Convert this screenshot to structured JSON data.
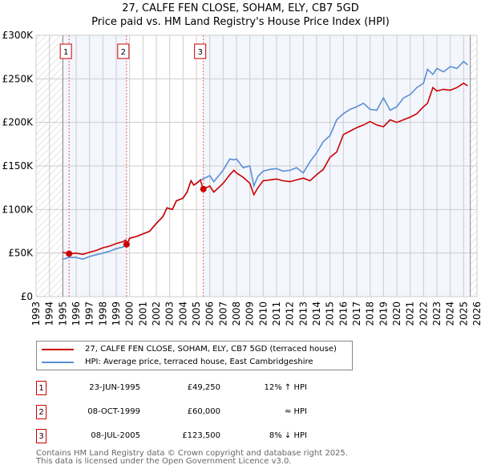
{
  "title_line1": "27, CALFE FEN CLOSE, SOHAM, ELY, CB7 5GD",
  "title_line2": "Price paid vs. HM Land Registry's House Price Index (HPI)",
  "chart_data": {
    "type": "line",
    "ylim": [
      0,
      300000
    ],
    "xlim": [
      1993,
      2026
    ],
    "yticks": [
      {
        "v": 0,
        "label": "£0"
      },
      {
        "v": 50000,
        "label": "£50K"
      },
      {
        "v": 100000,
        "label": "£100K"
      },
      {
        "v": 150000,
        "label": "£150K"
      },
      {
        "v": 200000,
        "label": "£200K"
      },
      {
        "v": 250000,
        "label": "£250K"
      },
      {
        "v": 300000,
        "label": "£300K"
      }
    ],
    "xticks": [
      "1993",
      "1994",
      "1995",
      "1996",
      "1997",
      "1998",
      "1999",
      "2000",
      "2001",
      "2002",
      "2003",
      "2004",
      "2005",
      "2006",
      "2007",
      "2008",
      "2009",
      "2010",
      "2011",
      "2012",
      "2013",
      "2014",
      "2015",
      "2016",
      "2017",
      "2018",
      "2019",
      "2020",
      "2021",
      "2022",
      "2023",
      "2024",
      "2025",
      "2026"
    ],
    "data_range": [
      1995,
      2025.5
    ],
    "series": [
      {
        "name": "27, CALFE FEN CLOSE, SOHAM, ELY, CB7 5GD (terraced house)",
        "color": "#cc0000",
        "x": [
          1995,
          1995.5,
          1996,
          1996.5,
          1997,
          1997.5,
          1998,
          1998.5,
          1999,
          1999.5,
          1999.7,
          1999.8,
          2000,
          2000.5,
          2001,
          2001.5,
          2002,
          2002.5,
          2002.8,
          2003.2,
          2003.5,
          2004,
          2004.3,
          2004.6,
          2004.8,
          2005,
          2005.3,
          2005.5,
          2006,
          2006.3,
          2007,
          2007.5,
          2007.8,
          2008,
          2008.5,
          2009,
          2009.3,
          2009.6,
          2010,
          2010.5,
          2011,
          2011.5,
          2012,
          2012.5,
          2013,
          2013.5,
          2014,
          2014.5,
          2015,
          2015.5,
          2016,
          2016.5,
          2017,
          2017.5,
          2018,
          2018.5,
          2019,
          2019.5,
          2020,
          2020.5,
          2021,
          2021.5,
          2022,
          2022.3,
          2022.7,
          2023,
          2023.5,
          2024,
          2024.5,
          2025,
          2025.3
        ],
        "values": [
          51000,
          49000,
          50000,
          48500,
          51000,
          53000,
          56000,
          58000,
          61000,
          63000,
          65000,
          60000,
          67000,
          69000,
          72000,
          75000,
          84000,
          92000,
          102000,
          100000,
          110000,
          113000,
          120000,
          133000,
          128000,
          130000,
          134000,
          123500,
          127000,
          120000,
          130000,
          140000,
          145000,
          142000,
          137000,
          130000,
          117000,
          125000,
          133000,
          134000,
          135000,
          133000,
          132000,
          134000,
          136000,
          133000,
          140000,
          146000,
          160000,
          166000,
          186000,
          190000,
          194000,
          197000,
          201000,
          197000,
          195000,
          203000,
          200000,
          203000,
          206000,
          210000,
          218000,
          222000,
          240000,
          236000,
          238000,
          237000,
          240000,
          245000,
          242000
        ]
      },
      {
        "name": "HPI: Average price, terraced house, East Cambridgeshire",
        "color": "#5b8fd4",
        "x": [
          1995,
          1995.5,
          1996,
          1996.5,
          1997,
          1997.5,
          1998,
          1998.5,
          1999,
          1999.5,
          1999.8,
          2000,
          2000.5,
          2001,
          2001.5,
          2002,
          2002.5,
          2002.8,
          2003.2,
          2003.5,
          2004,
          2004.3,
          2004.6,
          2004.8,
          2005,
          2005.3,
          2005.5,
          2006,
          2006.3,
          2007,
          2007.5,
          2007.8,
          2008,
          2008.5,
          2009,
          2009.3,
          2009.6,
          2010,
          2010.5,
          2011,
          2011.5,
          2012,
          2012.5,
          2013,
          2013.5,
          2014,
          2014.5,
          2015,
          2015.5,
          2016,
          2016.5,
          2017,
          2017.5,
          2018,
          2018.5,
          2019,
          2019.5,
          2020,
          2020.5,
          2021,
          2021.5,
          2022,
          2022.3,
          2022.7,
          2023,
          2023.5,
          2024,
          2024.5,
          2025,
          2025.3
        ],
        "values": [
          43000,
          45000,
          45000,
          43000,
          46000,
          48000,
          50000,
          52000,
          55000,
          57000,
          60000,
          67000,
          69000,
          72000,
          75000,
          84000,
          92000,
          102000,
          100000,
          110000,
          113000,
          120000,
          133000,
          128000,
          130000,
          134000,
          135000,
          139000,
          132000,
          145000,
          158000,
          157000,
          158000,
          148000,
          150000,
          127000,
          138000,
          144000,
          146000,
          147000,
          144000,
          145000,
          148000,
          142000,
          155000,
          165000,
          178000,
          185000,
          203000,
          210000,
          215000,
          218000,
          222000,
          215000,
          214000,
          228000,
          214000,
          218000,
          228000,
          232000,
          240000,
          245000,
          261000,
          255000,
          262000,
          258000,
          264000,
          262000,
          270000,
          266000
        ]
      }
    ],
    "sales": [
      {
        "num": "1",
        "date": "23-JUN-1995",
        "price": "£49,250",
        "hpi": "12% ↑ HPI",
        "x": 1995.47,
        "value": 49250
      },
      {
        "num": "2",
        "date": "08-OCT-1999",
        "price": "£60,000",
        "hpi": "≈ HPI",
        "x": 1999.77,
        "value": 60000
      },
      {
        "num": "3",
        "date": "08-JUL-2005",
        "price": "£123,500",
        "hpi": "8% ↓ HPI",
        "x": 2005.52,
        "value": 123500
      }
    ]
  },
  "footer_line1": "Contains HM Land Registry data © Crown copyright and database right 2025.",
  "footer_line2": "This data is licensed under the Open Government Licence v3.0."
}
